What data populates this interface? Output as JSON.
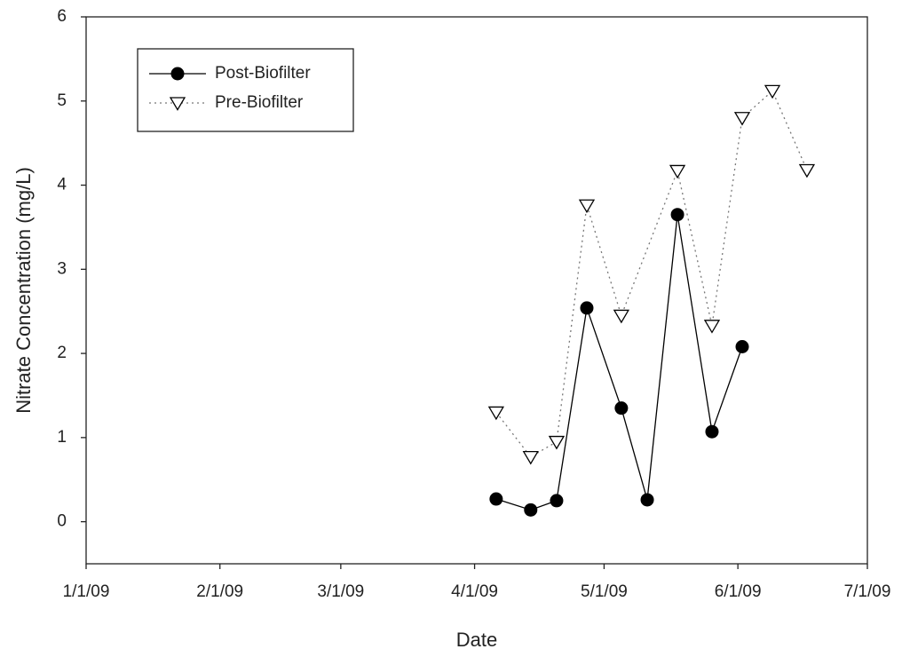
{
  "chart_data": {
    "type": "line",
    "xlabel": "Date",
    "ylabel": "Nitrate Concentration (mg/L)",
    "xlim": [
      "1/1/09",
      "7/1/09"
    ],
    "xticks": [
      "1/1/09",
      "2/1/09",
      "3/1/09",
      "4/1/09",
      "5/1/09",
      "6/1/09",
      "7/1/09"
    ],
    "ylim": [
      -0.5,
      6
    ],
    "yticks": [
      0,
      1,
      2,
      3,
      4,
      5,
      6
    ],
    "legend": "upper left",
    "series": [
      {
        "name": "Post-Biofilter",
        "color": "#000000",
        "marker": "circle",
        "linestyle": "solid",
        "x": [
          "4/6/09",
          "4/14/09",
          "4/20/09",
          "4/27/09",
          "5/5/09",
          "5/11/09",
          "5/18/09",
          "5/26/09",
          "6/2/09"
        ],
        "values": [
          0.27,
          0.14,
          0.25,
          2.54,
          1.35,
          0.26,
          3.65,
          1.07,
          2.08
        ]
      },
      {
        "name": "Pre-Biofilter",
        "color": "#000000",
        "marker": "triangle-down",
        "linestyle": "dotted",
        "x": [
          "4/6/09",
          "4/14/09",
          "4/20/09",
          "4/27/09",
          "5/5/09",
          "5/18/09",
          "5/26/09",
          "6/2/09",
          "6/9/09",
          "6/17/09"
        ],
        "values": [
          1.3,
          0.77,
          0.95,
          3.76,
          2.45,
          4.17,
          2.33,
          4.8,
          5.12,
          4.18
        ]
      }
    ]
  }
}
